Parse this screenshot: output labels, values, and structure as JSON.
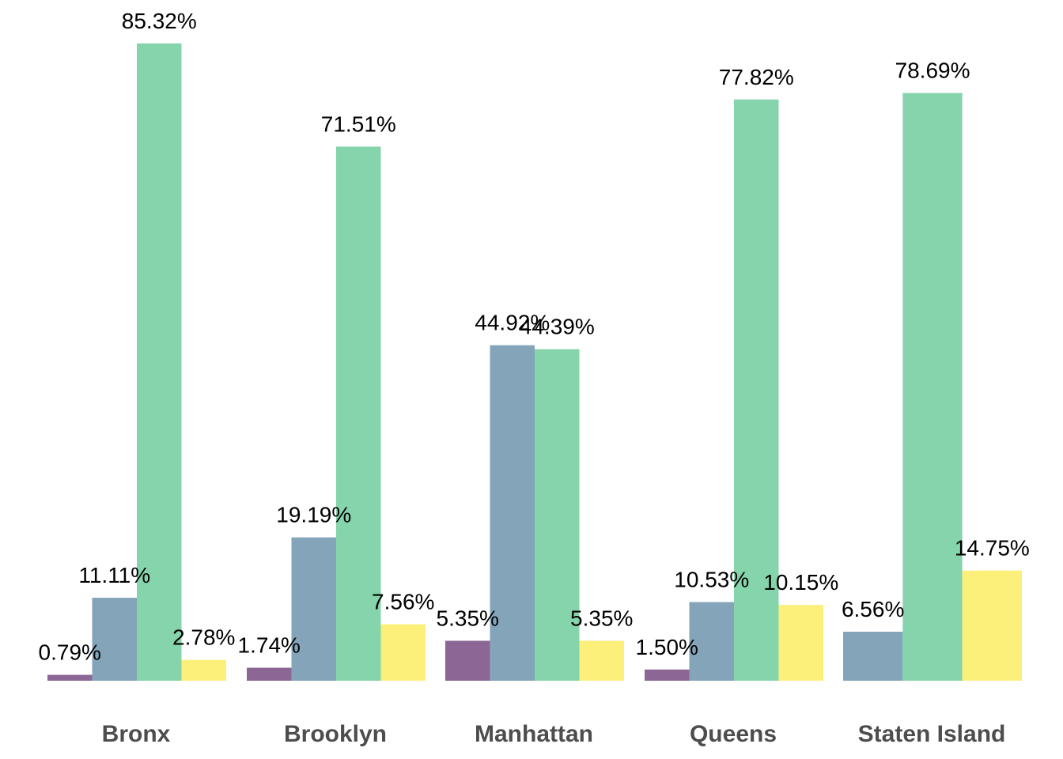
{
  "chart_data": {
    "type": "bar",
    "categories": [
      "Bronx",
      "Brooklyn",
      "Manhattan",
      "Queens",
      "Staten Island"
    ],
    "series_colors": [
      "#8c6795",
      "#84a4ba",
      "#86d4ab",
      "#fcef7a"
    ],
    "bars": [
      [
        {
          "value": 0.79,
          "label": "0.79%"
        },
        {
          "value": 11.11,
          "label": "11.11%"
        },
        {
          "value": 85.32,
          "label": "85.32%"
        },
        {
          "value": 2.78,
          "label": "2.78%"
        }
      ],
      [
        {
          "value": 1.74,
          "label": "1.74%"
        },
        {
          "value": 19.19,
          "label": "19.19%"
        },
        {
          "value": 71.51,
          "label": "71.51%"
        },
        {
          "value": 7.56,
          "label": "7.56%"
        }
      ],
      [
        {
          "value": 5.35,
          "label": "5.35%"
        },
        {
          "value": 44.92,
          "label": "44.92%"
        },
        {
          "value": 44.39,
          "label": "44.39%"
        },
        {
          "value": 5.35,
          "label": "5.35%"
        }
      ],
      [
        {
          "value": 1.5,
          "label": "1.50%"
        },
        {
          "value": 10.53,
          "label": "10.53%"
        },
        {
          "value": 77.82,
          "label": "77.82%"
        },
        {
          "value": 10.15,
          "label": "10.15%"
        }
      ],
      [
        {
          "value": 6.56,
          "label": "6.56%"
        },
        {
          "value": 78.69,
          "label": "78.69%"
        },
        {
          "value": 14.75,
          "label": "14.75%"
        }
      ]
    ],
    "bar_series": [
      [
        0,
        1,
        2,
        3
      ],
      [
        0,
        1,
        2,
        3
      ],
      [
        0,
        1,
        2,
        3
      ],
      [
        0,
        1,
        2,
        3
      ],
      [
        1,
        2,
        3
      ]
    ],
    "ylim": [
      0,
      85.32
    ],
    "grid": false,
    "legend": "none"
  }
}
